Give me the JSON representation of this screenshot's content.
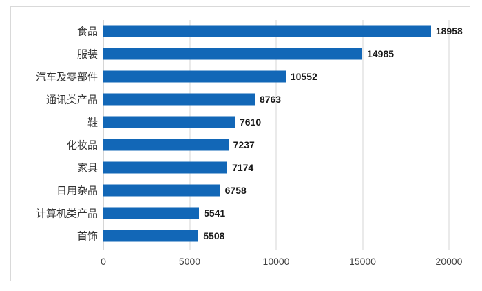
{
  "chart_data": {
    "type": "bar",
    "orientation": "horizontal",
    "title": "",
    "xlabel": "",
    "ylabel": "",
    "legend": "none",
    "grid": "vertical-gridlines",
    "categories": [
      "食品",
      "服装",
      "汽车及零部件",
      "通讯类产品",
      "鞋",
      "化妆品",
      "家具",
      "日用杂品",
      "计算机类产品",
      "首饰"
    ],
    "values": [
      18958,
      14985,
      10552,
      8763,
      7610,
      7237,
      7174,
      6758,
      5541,
      5508
    ],
    "data_labels": [
      "18958",
      "14985",
      "10552",
      "8763",
      "7610",
      "7237",
      "7174",
      "6758",
      "5541",
      "5508"
    ],
    "x_ticks": [
      0,
      5000,
      10000,
      15000,
      20000
    ],
    "x_tick_labels": [
      "0",
      "5000",
      "10000",
      "15000",
      "20000"
    ],
    "xlim": [
      0,
      20000
    ],
    "colors": {
      "bar": "#1267b7",
      "gridline": "#d6d6d6",
      "axis_line": "#aeaeae",
      "frame_border": "#d9d9d9",
      "category_label": "#333333",
      "value_label": "#1a1a1a",
      "tick_label": "#404040",
      "background": "#ffffff"
    }
  }
}
